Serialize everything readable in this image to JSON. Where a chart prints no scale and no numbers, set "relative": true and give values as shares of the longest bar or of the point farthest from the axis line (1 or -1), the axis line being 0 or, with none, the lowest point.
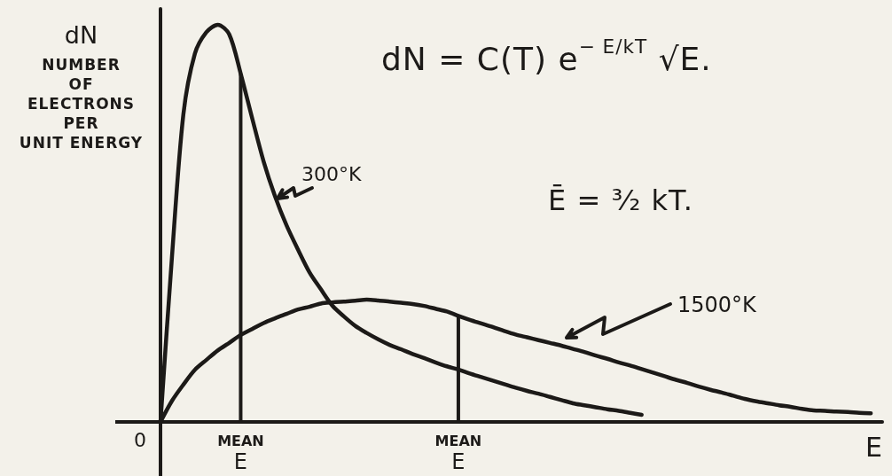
{
  "chart_data": {
    "type": "line",
    "xlabel": "E",
    "ylabel": "dN\nNUMBER\nOF\nELECTRONS\nPER\nUNIT ENERGY",
    "relative": true,
    "tick_labels": "x",
    "grid": false,
    "legend": false,
    "marker": "none",
    "line_style": "solid",
    "categories": [
      null,
      null,
      null,
      null,
      null,
      null,
      null,
      "MEAN\nE",
      null,
      null,
      null,
      null,
      null,
      null,
      null,
      null,
      null,
      null,
      null,
      null,
      null,
      null,
      null,
      null,
      null,
      null,
      "MEAN\nE",
      null,
      null,
      null,
      null,
      null,
      null,
      null,
      null,
      null,
      null,
      null,
      null,
      null,
      null,
      null,
      null,
      null,
      null,
      null,
      null,
      null,
      null,
      null,
      null,
      null,
      null,
      null,
      null,
      null,
      null,
      null,
      null,
      null,
      null,
      null,
      null,
      null
    ],
    "series": [
      {
        "name": "300°K",
        "color": "#1c1a18",
        "values": [
          0,
          0.415,
          0.775,
          0.927,
          0.981,
          1,
          0.976,
          0.877,
          0.765,
          0.656,
          0.568,
          0.495,
          0.434,
          0.377,
          0.334,
          0.293,
          0.266,
          0.242,
          0.224,
          0.208,
          0.194,
          0.183,
          0.171,
          0.161,
          0.15,
          0.14,
          0.132,
          0.122,
          0.113,
          0.104,
          0.095,
          0.086,
          0.078,
          0.071,
          0.063,
          0.055,
          0.047,
          0.042,
          0.037,
          0.032,
          0.028,
          0.023,
          0.018,
          null,
          null,
          null,
          null,
          null,
          null,
          null,
          null,
          null,
          null,
          null,
          null,
          null,
          null,
          null,
          null,
          null,
          null,
          null,
          null,
          null
        ]
      },
      {
        "name": "1500°K",
        "color": "#1c1a18",
        "values": [
          0,
          0.053,
          0.094,
          0.131,
          0.156,
          0.18,
          0.199,
          0.219,
          0.234,
          0.249,
          0.261,
          0.272,
          0.283,
          0.29,
          0.298,
          0.301,
          0.303,
          0.305,
          0.308,
          0.306,
          0.303,
          0.3,
          0.297,
          0.292,
          0.285,
          0.278,
          0.267,
          0.257,
          0.248,
          0.239,
          0.229,
          0.22,
          0.213,
          0.206,
          0.199,
          0.192,
          0.184,
          0.176,
          0.167,
          0.159,
          0.15,
          0.142,
          0.133,
          0.124,
          0.115,
          0.106,
          0.098,
          0.089,
          0.081,
          0.074,
          0.066,
          0.058,
          0.052,
          0.047,
          0.042,
          0.038,
          0.033,
          0.029,
          0.028,
          0.026,
          0.025,
          0.023,
          0.022,
          null
        ]
      },
      {
        "type": "bar",
        "color": "#1c1a18",
        "values": [
          null,
          null,
          null,
          null,
          null,
          null,
          null,
          0.877,
          null,
          null,
          null,
          null,
          null,
          null,
          null,
          null,
          null,
          null,
          null,
          null,
          null,
          null,
          null,
          null,
          null,
          null,
          0.267,
          null,
          null,
          null,
          null,
          null,
          null,
          null,
          null,
          null,
          null,
          null,
          null,
          null,
          null,
          null,
          null,
          null,
          null,
          null,
          null,
          null,
          null,
          null,
          null,
          null,
          null,
          null,
          null,
          null,
          null,
          null,
          null,
          null,
          null,
          null,
          null,
          null
        ]
      }
    ],
    "annotations": [
      "dN = C(T) e$^{− E/kT}$ √E.",
      "Ē = ³⁄₂ kT.",
      "0"
    ]
  }
}
